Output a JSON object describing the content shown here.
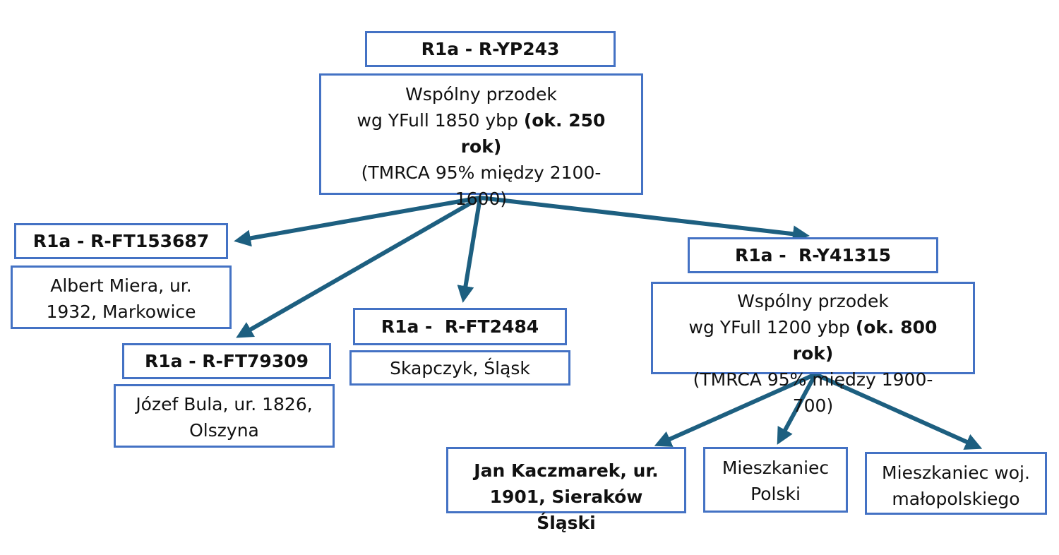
{
  "root": {
    "header": "R1a - R-YP243",
    "line1": "Wspólny przodek",
    "line2": "wg YFull 1850 ybp ",
    "line2_bold": "(ok. 250 rok)",
    "line3": "(TMRCA 95% między 2100-1600)"
  },
  "ft153687": {
    "header": "R1a - R-FT153687",
    "desc": "Albert Miera, ur. 1932, Markowice"
  },
  "ft79309": {
    "header": "R1a - R-FT79309",
    "desc": "Józef Bula, ur. 1826, Olszyna"
  },
  "ft2484": {
    "header": "R1a -  R-FT2484",
    "desc": "Skapczyk, Śląsk"
  },
  "y41315": {
    "header": "R1a -  R-Y41315",
    "line1": "Wspólny przodek",
    "line2": "wg YFull 1200 ybp ",
    "line2_bold": "(ok. 800 rok)",
    "line3": "(TMRCA 95% między 1900-700)"
  },
  "leaves": [
    {
      "text": "Jan Kaczmarek, ur. 1901, Sieraków Śląski",
      "bold": true
    },
    {
      "text": "Mieszkaniec Polski"
    },
    {
      "text": "Mieszkaniec woj. małopolskiego"
    }
  ],
  "colors": {
    "border": "#4472c4",
    "arrow": "#1d5f80"
  }
}
